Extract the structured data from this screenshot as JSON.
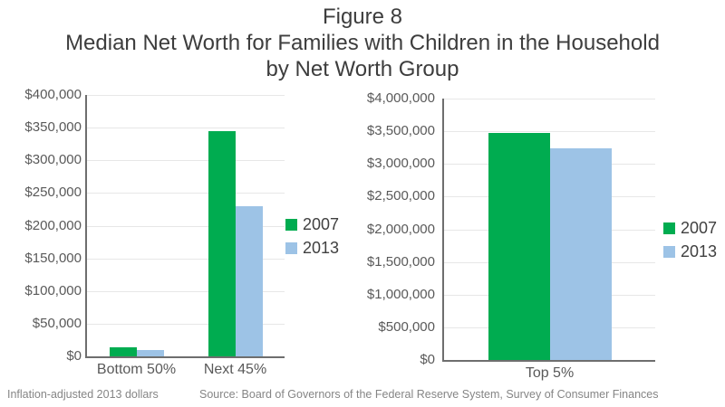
{
  "title": {
    "line1": "Figure 8",
    "line2": "Median Net Worth for Families with Children in the Household",
    "line3": "by Net Worth Group"
  },
  "footer": {
    "note": "Inflation-adjusted 2013 dollars",
    "source": "Source: Board of Governors of the Federal Reserve System, Survey of Consumer Finances"
  },
  "colors": {
    "series_2007": "#00ac50",
    "series_2013": "#9dc3e6",
    "axis_line": "#6e6e6e",
    "gridline": "#e7e7e7",
    "tick_text": "#595959",
    "title_text": "#3d3d3d",
    "footer_text": "#858585"
  },
  "chart_data": [
    {
      "type": "bar",
      "title": "",
      "xlabel": "",
      "ylabel": "",
      "categories": [
        "Bottom 50%",
        "Next 45%"
      ],
      "series": [
        {
          "name": "2007",
          "color": "#00ac50",
          "values": [
            14000,
            344000
          ]
        },
        {
          "name": "2013",
          "color": "#9dc3e6",
          "values": [
            9000,
            230000
          ]
        }
      ],
      "ylim": [
        0,
        400000
      ],
      "ytick_step": 50000,
      "ytick_labels": [
        "$0",
        "$50,000",
        "$100,000",
        "$150,000",
        "$200,000",
        "$250,000",
        "$300,000",
        "$350,000",
        "$400,000"
      ],
      "grid": true,
      "legend_position": "right-middle"
    },
    {
      "type": "bar",
      "title": "",
      "xlabel": "",
      "ylabel": "",
      "categories": [
        "Top 5%"
      ],
      "series": [
        {
          "name": "2007",
          "color": "#00ac50",
          "values": [
            3480000
          ]
        },
        {
          "name": "2013",
          "color": "#9dc3e6",
          "values": [
            3240000
          ]
        }
      ],
      "ylim": [
        0,
        4000000
      ],
      "ytick_step": 500000,
      "ytick_labels": [
        "$0",
        "$500,000",
        "$1,000,000",
        "$1,500,000",
        "$2,000,000",
        "$2,500,000",
        "$3,000,000",
        "$3,500,000",
        "$4,000,000"
      ],
      "grid": true,
      "legend_position": "right-middle"
    }
  ]
}
